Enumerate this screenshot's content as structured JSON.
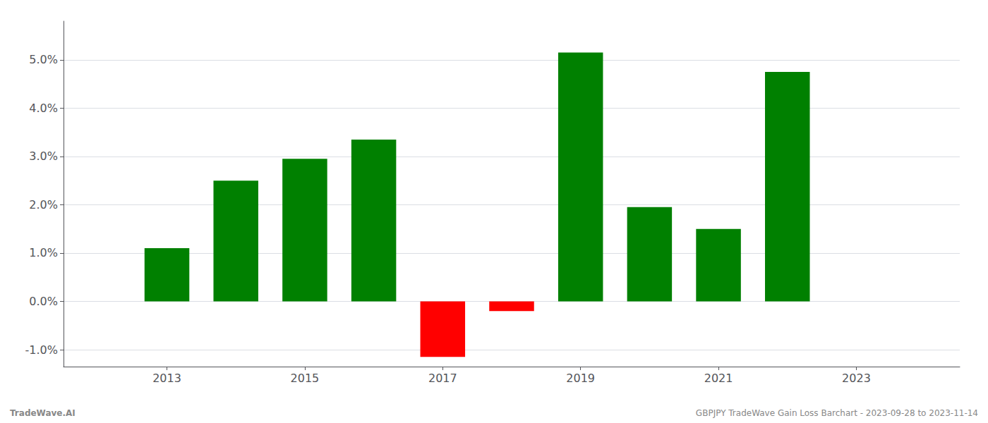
{
  "chart_data": {
    "type": "bar",
    "x": [
      2013,
      2014,
      2015,
      2016,
      2017,
      2018,
      2019,
      2020,
      2021,
      2022
    ],
    "values": [
      0.011,
      0.025,
      0.0295,
      0.0335,
      -0.0115,
      -0.002,
      0.0515,
      0.0195,
      0.015,
      0.0475
    ],
    "colors": [
      "#008000",
      "#008000",
      "#008000",
      "#008000",
      "#ff0000",
      "#ff0000",
      "#008000",
      "#008000",
      "#008000",
      "#008000"
    ],
    "xlim": [
      2011.5,
      2024.5
    ],
    "xticks": [
      2013,
      2015,
      2017,
      2019,
      2021,
      2023
    ],
    "ylim": [
      -0.0135,
      0.058
    ],
    "yticks": [
      {
        "value": -0.01,
        "label": "-1.0%"
      },
      {
        "value": 0.0,
        "label": "0.0%"
      },
      {
        "value": 0.01,
        "label": "1.0%"
      },
      {
        "value": 0.02,
        "label": "2.0%"
      },
      {
        "value": 0.03,
        "label": "3.0%"
      },
      {
        "value": 0.04,
        "label": "4.0%"
      },
      {
        "value": 0.05,
        "label": "5.0%"
      }
    ],
    "grid": true,
    "annotations": [
      "TradeWave.AI",
      "GBPJPY TradeWave Gain Loss Barchart - 2023-09-28 to 2023-11-14"
    ]
  }
}
